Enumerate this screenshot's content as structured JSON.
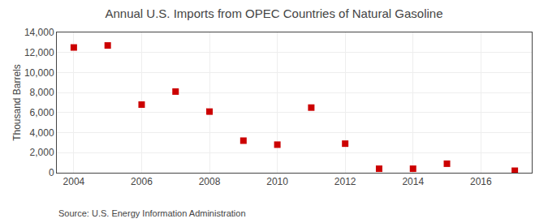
{
  "chart_data": {
    "type": "scatter",
    "title": "Annual U.S. Imports from OPEC Countries of Natural Gasoline",
    "y_label": "Thousand Barrels",
    "annotations": [
      "Source: U.S. Energy Information Administration"
    ],
    "x": [
      2004,
      2005,
      2006,
      2007,
      2008,
      2009,
      2010,
      2011,
      2012,
      2013,
      2014,
      2015,
      2017
    ],
    "values": [
      12500,
      12700,
      6800,
      8100,
      6100,
      3200,
      2800,
      6500,
      2900,
      400,
      400,
      900,
      200
    ],
    "color": "#cc0000",
    "marker": "square",
    "xlim": [
      2003.5,
      2017.5
    ],
    "xticks": [
      2004,
      2006,
      2008,
      2010,
      2012,
      2014,
      2016
    ],
    "ylim": [
      0,
      14000
    ],
    "yticks": [
      0,
      {
        "value": 2000,
        "label": "2,000"
      },
      {
        "value": 4000,
        "label": "4,000"
      },
      {
        "value": 6000,
        "label": "6,000"
      },
      {
        "value": 8000,
        "label": "8,000"
      },
      {
        "value": 10000,
        "label": "10,000"
      },
      {
        "value": 12000,
        "label": "12,000"
      },
      {
        "value": 14000,
        "label": "14,000"
      }
    ],
    "grid": true
  }
}
